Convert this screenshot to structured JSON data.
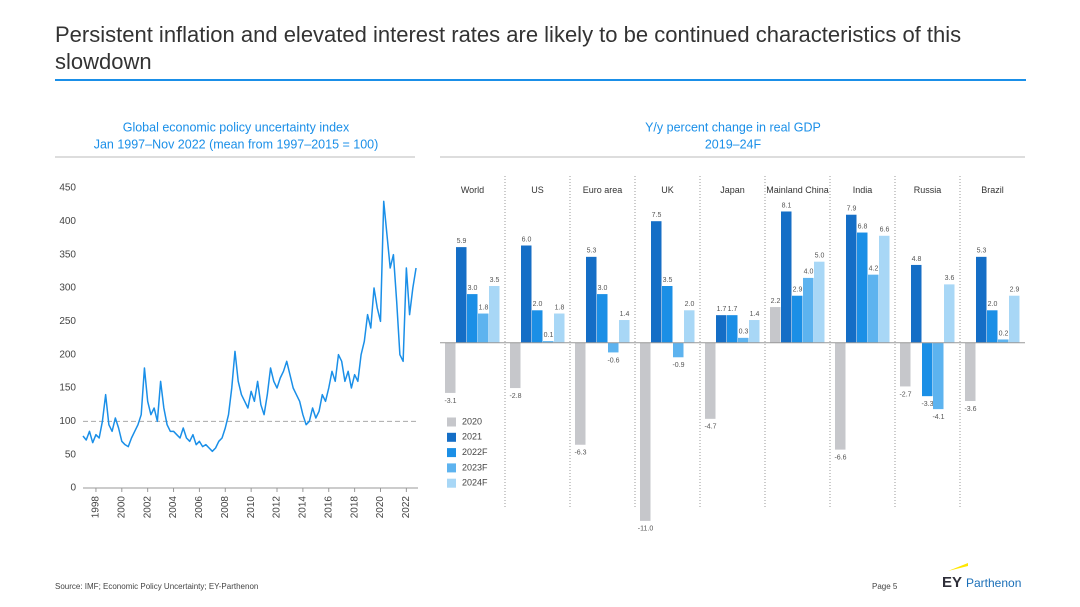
{
  "title": "Persistent inflation and elevated interest rates are likely to be continued characteristics of this slowdown",
  "chart_data": [
    {
      "type": "line",
      "title": "Global economic policy uncertainty index",
      "subtitle": "Jan 1997–Nov 2022 (mean from 1997–2015 = 100)",
      "x": [
        1997,
        1997.25,
        1997.5,
        1997.75,
        1998,
        1998.25,
        1998.5,
        1998.75,
        1999,
        1999.25,
        1999.5,
        1999.75,
        2000,
        2000.25,
        2000.5,
        2000.75,
        2001,
        2001.25,
        2001.5,
        2001.75,
        2002,
        2002.25,
        2002.5,
        2002.75,
        2003,
        2003.25,
        2003.5,
        2003.75,
        2004,
        2004.25,
        2004.5,
        2004.75,
        2005,
        2005.25,
        2005.5,
        2005.75,
        2006,
        2006.25,
        2006.5,
        2006.75,
        2007,
        2007.25,
        2007.5,
        2007.75,
        2008,
        2008.25,
        2008.5,
        2008.75,
        2009,
        2009.25,
        2009.5,
        2009.75,
        2010,
        2010.25,
        2010.5,
        2010.75,
        2011,
        2011.25,
        2011.5,
        2011.75,
        2012,
        2012.25,
        2012.5,
        2012.75,
        2013,
        2013.25,
        2013.5,
        2013.75,
        2014,
        2014.25,
        2014.5,
        2014.75,
        2015,
        2015.25,
        2015.5,
        2015.75,
        2016,
        2016.25,
        2016.5,
        2016.75,
        2017,
        2017.25,
        2017.5,
        2017.75,
        2018,
        2018.25,
        2018.5,
        2018.75,
        2019,
        2019.25,
        2019.5,
        2019.75,
        2020,
        2020.25,
        2020.5,
        2020.75,
        2021,
        2021.25,
        2021.5,
        2021.75,
        2022,
        2022.25,
        2022.5,
        2022.75
      ],
      "values": [
        78,
        72,
        85,
        68,
        80,
        75,
        100,
        140,
        95,
        85,
        105,
        90,
        70,
        65,
        62,
        75,
        85,
        95,
        110,
        180,
        130,
        110,
        120,
        100,
        160,
        120,
        95,
        85,
        85,
        80,
        75,
        90,
        75,
        70,
        80,
        65,
        70,
        62,
        65,
        60,
        55,
        60,
        70,
        75,
        90,
        110,
        150,
        205,
        160,
        140,
        130,
        120,
        145,
        130,
        160,
        125,
        110,
        140,
        180,
        160,
        150,
        165,
        175,
        190,
        170,
        150,
        140,
        130,
        110,
        95,
        100,
        120,
        105,
        115,
        140,
        130,
        150,
        175,
        160,
        200,
        190,
        160,
        175,
        150,
        170,
        160,
        200,
        220,
        260,
        240,
        300,
        270,
        250,
        430,
        380,
        330,
        350,
        280,
        200,
        190,
        330,
        260,
        300,
        330
      ],
      "color": "#1a8fe8",
      "xlim": [
        1997,
        2022.9
      ],
      "ylim": [
        0,
        450
      ],
      "yticks": [
        0,
        50,
        100,
        150,
        200,
        250,
        300,
        350,
        400,
        450
      ],
      "xticks": [
        1998,
        2000,
        2002,
        2004,
        2006,
        2008,
        2010,
        2012,
        2014,
        2016,
        2018,
        2020,
        2022
      ],
      "reference_line": 100
    },
    {
      "type": "bar",
      "title": "Y/y percent change in real GDP",
      "subtitle": "2019–24F",
      "categories": [
        "World",
        "US",
        "Euro area",
        "UK",
        "Japan",
        "Mainland China",
        "India",
        "Russia",
        "Brazil"
      ],
      "ylim": [
        -11.5,
        8.5
      ],
      "series": [
        {
          "name": "2020",
          "color": "#c6c7cb",
          "values": [
            -3.1,
            -2.8,
            -6.3,
            -11.0,
            -4.7,
            2.2,
            -6.6,
            -2.7,
            -3.6
          ],
          "value_labels": [
            "-3.1",
            "-2.8",
            "-6.3",
            "-11.0",
            "-4.7",
            "2.2",
            "-6.6",
            "-2.7",
            "-3.6"
          ]
        },
        {
          "name": "2021",
          "color": "#156ec6",
          "values": [
            5.9,
            6.0,
            5.3,
            7.5,
            1.7,
            8.1,
            7.9,
            4.8,
            5.3
          ],
          "value_labels": [
            "5.9",
            "6.0",
            "5.3",
            "7.5",
            "1.7",
            "8.1",
            "7.9",
            "4.8",
            "5.3"
          ]
        },
        {
          "name": "2022F",
          "color": "#1b8fe6",
          "values": [
            3.0,
            2.0,
            3.0,
            3.5,
            1.7,
            2.9,
            6.8,
            -3.3,
            2.0
          ],
          "value_labels": [
            "3.0",
            "2.0",
            "3.0",
            "3.5",
            "1.7",
            "2.9",
            "6.8",
            "-3.3",
            "2.0"
          ]
        },
        {
          "name": "2023F",
          "color": "#5db3ef",
          "values": [
            1.8,
            0.1,
            -0.6,
            -0.9,
            0.3,
            4.0,
            4.2,
            -4.1,
            0.2
          ],
          "value_labels": [
            "1.8",
            "0.1",
            "-0.6",
            "-0.9",
            "0.3",
            "4.0",
            "4.2",
            "-4.1",
            "0.2"
          ]
        },
        {
          "name": "2024F",
          "color": "#a8d7f6",
          "values": [
            3.5,
            1.8,
            1.4,
            2.0,
            1.4,
            5.0,
            6.6,
            3.6,
            2.9
          ],
          "value_labels": [
            "3.5",
            "1.8",
            "1.4",
            "2.0",
            "1.4",
            "5.0",
            "6.6",
            "3.6",
            "2.9"
          ]
        }
      ]
    }
  ],
  "footer": {
    "source": "Source: IMF; Economic Policy Uncertainty; EY-Parthenon",
    "page": "Page 5",
    "logo": "EY",
    "brand": "Parthenon"
  }
}
